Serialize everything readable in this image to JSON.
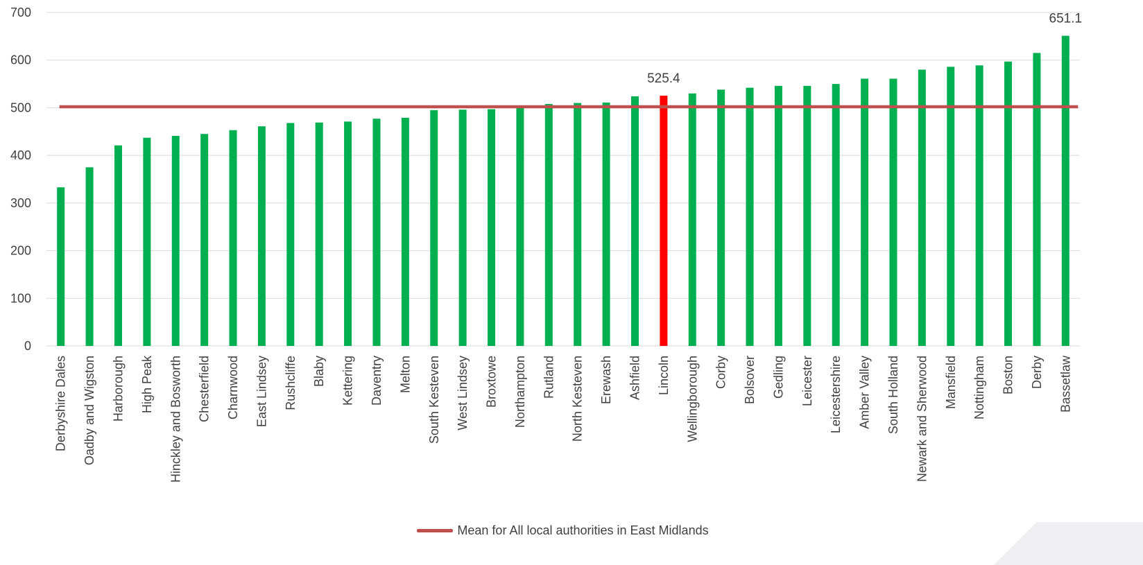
{
  "chart_data": {
    "type": "bar",
    "title": "",
    "xlabel": "",
    "ylabel": "",
    "ylim": [
      0,
      700
    ],
    "yticks": [
      0,
      100,
      200,
      300,
      400,
      500,
      600,
      700
    ],
    "grid": "horizontal",
    "legend_position": "bottom",
    "categories": [
      "Derbyshire Dales",
      "Oadby and Wigston",
      "Harborough",
      "High Peak",
      "Hinckley and Bosworth",
      "Chesterfield",
      "Charnwood",
      "East Lindsey",
      "Rushcliffe",
      "Blaby",
      "Kettering",
      "Daventry",
      "Melton",
      "South Kesteven",
      "West Lindsey",
      "Broxtowe",
      "Northampton",
      "Rutland",
      "North Kesteven",
      "Erewash",
      "Ashfield",
      "Lincoln",
      "Wellingborough",
      "Corby",
      "Bolsover",
      "Gedling",
      "Leicester",
      "Leicestershire",
      "Amber Valley",
      "South Holland",
      "Newark and Sherwood",
      "Mansfield",
      "Nottingham",
      "Boston",
      "Derby",
      "Bassetlaw"
    ],
    "series": [
      {
        "values": [
          333,
          375,
          421,
          437,
          441,
          445,
          453,
          461,
          468,
          469,
          471,
          477,
          479,
          495,
          496,
          497,
          502,
          508,
          510,
          511,
          524,
          525.4,
          530,
          538,
          542,
          546,
          546,
          550,
          561,
          561,
          580,
          586,
          589,
          597,
          615,
          651.1
        ]
      }
    ],
    "highlight": {
      "category": "Lincoln",
      "label": "525.4"
    },
    "max_label": {
      "category": "Bassetlaw",
      "label": "651.1"
    },
    "mean_line": {
      "name": "Mean for All local authorities in East Midlands",
      "value": 502
    },
    "colors": {
      "bar": "#00B050",
      "highlight_bar": "#FF0000",
      "mean_line": "#C0504D",
      "grid": "#D9D9D9",
      "text": "#404040"
    }
  }
}
